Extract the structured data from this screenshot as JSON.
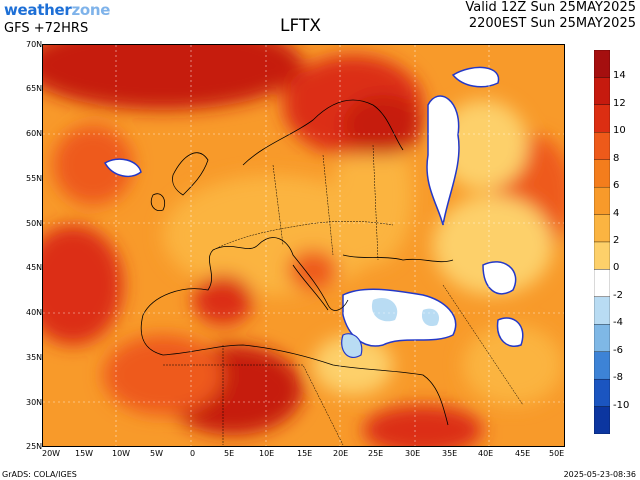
{
  "header": {
    "brand_weather": "weather",
    "brand_zone": "zone",
    "model": "GFS +72HRS",
    "title": "LFTX",
    "valid_line": "Valid 12Z Sun 25MAY2025",
    "local_line": "2200EST Sun 25MAY2025"
  },
  "map": {
    "lat_labels": [
      "70N",
      "65N",
      "60N",
      "55N",
      "50N",
      "45N",
      "40N",
      "35N",
      "30N",
      "25N"
    ],
    "lon_labels": [
      "20W",
      "15W",
      "10W",
      "5W",
      "0",
      "5E",
      "10E",
      "15E",
      "20E",
      "25E",
      "30E",
      "35E",
      "40E",
      "45E",
      "50E"
    ],
    "field": "lifted index"
  },
  "colorbar": {
    "ticks": [
      "14",
      "12",
      "10",
      "8",
      "6",
      "4",
      "2",
      "0",
      "-2",
      "-4",
      "-6",
      "-8",
      "-10"
    ],
    "colors": [
      "#a50f0f",
      "#c61a0e",
      "#dc2e12",
      "#ee5a1a",
      "#f47d1c",
      "#f89a2a",
      "#fbb441",
      "#fdd06a",
      "#ffffff",
      "#b9dcf3",
      "#7fb8e6",
      "#3d83d6",
      "#1b55c0",
      "#0c36a0"
    ]
  },
  "footer": {
    "credit": "GrADS: COLA/IGES",
    "timestamp": "2025-05-23-08:36"
  }
}
